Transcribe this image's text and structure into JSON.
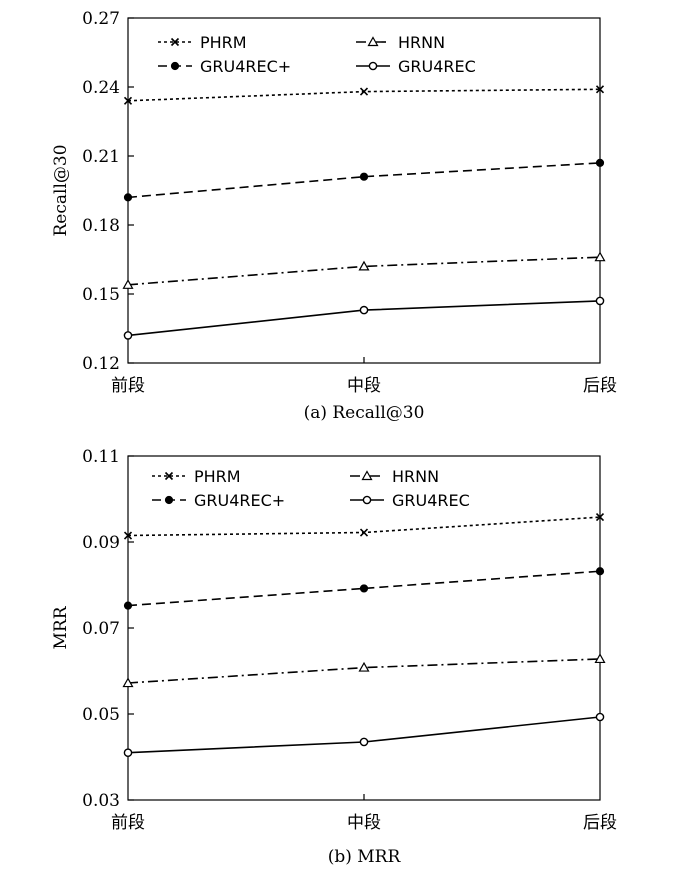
{
  "chart_data": [
    {
      "type": "line",
      "caption": "(a) Recall@30",
      "ylabel": "Recall@30",
      "xlabel": "",
      "categories": [
        "前段",
        "中段",
        "后段"
      ],
      "ylim": [
        0.12,
        0.27
      ],
      "yticks": [
        "0.12",
        "0.15",
        "0.18",
        "0.21",
        "0.24",
        "0.27"
      ],
      "legend_position": "top",
      "series": [
        {
          "name": "PHRM",
          "style": "dotted",
          "marker": "x",
          "values": [
            0.234,
            0.238,
            0.239
          ]
        },
        {
          "name": "HRNN",
          "style": "dashdot",
          "marker": "triangle",
          "values": [
            0.154,
            0.162,
            0.166
          ]
        },
        {
          "name": "GRU4REC+",
          "style": "dashed",
          "marker": "filled-circle",
          "values": [
            0.192,
            0.201,
            0.207
          ]
        },
        {
          "name": "GRU4REC",
          "style": "solid",
          "marker": "open-circle",
          "values": [
            0.132,
            0.143,
            0.147
          ]
        }
      ]
    },
    {
      "type": "line",
      "caption": "(b) MRR",
      "ylabel": "MRR",
      "xlabel": "",
      "categories": [
        "前段",
        "中段",
        "后段"
      ],
      "ylim": [
        0.03,
        0.11
      ],
      "yticks": [
        "0.03",
        "0.05",
        "0.07",
        "0.09",
        "0.11"
      ],
      "legend_position": "top",
      "series": [
        {
          "name": "PHRM",
          "style": "dotted",
          "marker": "x",
          "values": [
            0.0915,
            0.0922,
            0.0958
          ]
        },
        {
          "name": "HRNN",
          "style": "dashdot",
          "marker": "triangle",
          "values": [
            0.0572,
            0.0608,
            0.0628
          ]
        },
        {
          "name": "GRU4REC+",
          "style": "dashed",
          "marker": "filled-circle",
          "values": [
            0.0752,
            0.0792,
            0.0832
          ]
        },
        {
          "name": "GRU4REC",
          "style": "solid",
          "marker": "open-circle",
          "values": [
            0.041,
            0.0435,
            0.0493
          ]
        }
      ]
    }
  ]
}
